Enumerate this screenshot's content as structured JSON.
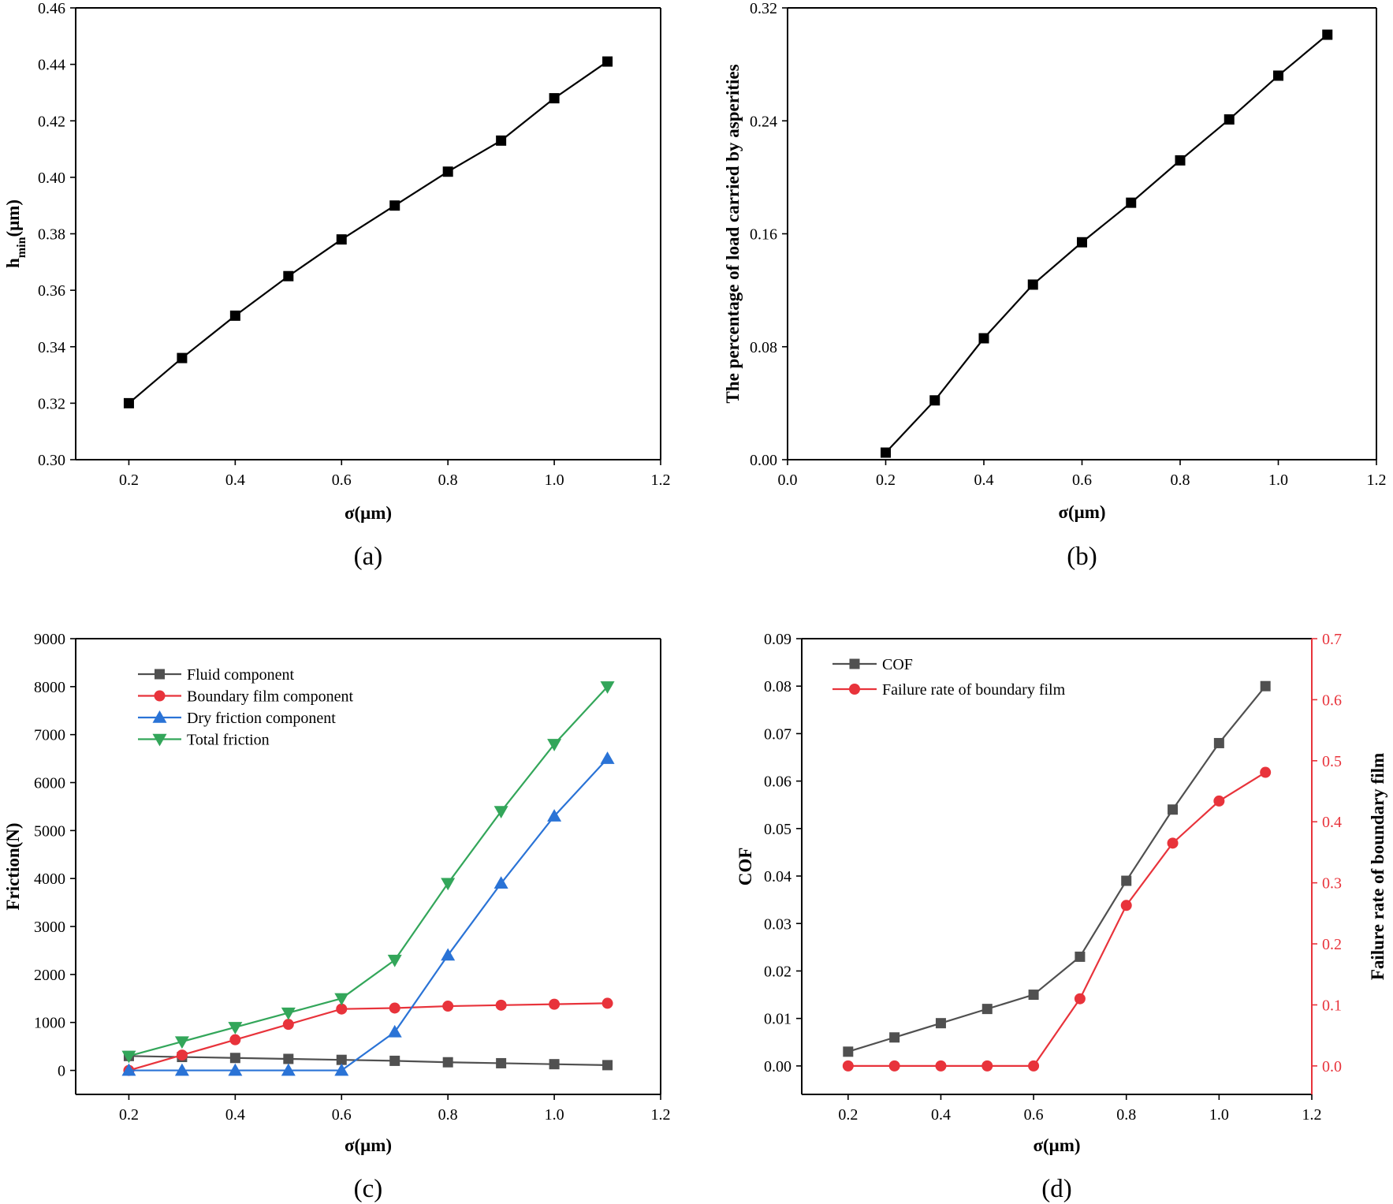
{
  "figure": {
    "panels": [
      "(a)",
      "(b)",
      "(c)",
      "(d)"
    ]
  },
  "chart_data": [
    {
      "id": "a",
      "type": "line",
      "panel_label": "(a)",
      "title": "",
      "xlabel": "σ(μm)",
      "ylabel_main": "h",
      "ylabel_sub": "min",
      "ylabel_tail": "(μm)",
      "xlim": [
        0.1,
        1.2
      ],
      "ylim": [
        0.3,
        0.46
      ],
      "xticks": [
        0.2,
        0.4,
        0.6,
        0.8,
        1.0,
        1.2
      ],
      "xtick_labels": [
        "0.2",
        "0.4",
        "0.6",
        "0.8",
        "1.0",
        "1.2"
      ],
      "yticks": [
        0.3,
        0.32,
        0.34,
        0.36,
        0.38,
        0.4,
        0.42,
        0.44,
        0.46
      ],
      "ytick_labels": [
        "0.30",
        "0.32",
        "0.34",
        "0.36",
        "0.38",
        "0.40",
        "0.42",
        "0.44",
        "0.46"
      ],
      "series": [
        {
          "name": "h_min",
          "color": "#000000",
          "marker": "square",
          "x": [
            0.2,
            0.3,
            0.4,
            0.5,
            0.6,
            0.7,
            0.8,
            0.9,
            1.0,
            1.1
          ],
          "values": [
            0.32,
            0.336,
            0.351,
            0.365,
            0.378,
            0.39,
            0.402,
            0.413,
            0.428,
            0.441
          ]
        }
      ]
    },
    {
      "id": "b",
      "type": "line",
      "panel_label": "(b)",
      "title": "",
      "xlabel": "σ(μm)",
      "ylabel": "The percentage of load carried by asperities",
      "xlim": [
        0.0,
        1.2
      ],
      "ylim": [
        0.0,
        0.32
      ],
      "xticks": [
        0.0,
        0.2,
        0.4,
        0.6,
        0.8,
        1.0,
        1.2
      ],
      "xtick_labels": [
        "0.0",
        "0.2",
        "0.4",
        "0.6",
        "0.8",
        "1.0",
        "1.2"
      ],
      "yticks": [
        0.0,
        0.08,
        0.16,
        0.24,
        0.32
      ],
      "ytick_labels": [
        "0.00",
        "0.08",
        "0.16",
        "0.24",
        "0.32"
      ],
      "series": [
        {
          "name": "load percentage",
          "color": "#000000",
          "marker": "square",
          "x": [
            0.2,
            0.3,
            0.4,
            0.5,
            0.6,
            0.7,
            0.8,
            0.9,
            1.0,
            1.1
          ],
          "values": [
            0.005,
            0.042,
            0.086,
            0.124,
            0.154,
            0.182,
            0.212,
            0.241,
            0.272,
            0.301
          ]
        }
      ]
    },
    {
      "id": "c",
      "type": "line",
      "panel_label": "(c)",
      "title": "",
      "xlabel": "σ(μm)",
      "ylabel": "Friction(N)",
      "xlim": [
        0.1,
        1.2
      ],
      "ylim": [
        -500,
        9000
      ],
      "xticks": [
        0.2,
        0.4,
        0.6,
        0.8,
        1.0,
        1.2
      ],
      "xtick_labels": [
        "0.2",
        "0.4",
        "0.6",
        "0.8",
        "1.0",
        "1.2"
      ],
      "yticks": [
        0,
        1000,
        2000,
        3000,
        4000,
        5000,
        6000,
        7000,
        8000,
        9000
      ],
      "ytick_labels": [
        "0",
        "1000",
        "2000",
        "3000",
        "4000",
        "5000",
        "6000",
        "7000",
        "8000",
        "9000"
      ],
      "legend_position": "top-left",
      "series": [
        {
          "name": "Fluid component",
          "color": "#505050",
          "marker": "square",
          "x": [
            0.2,
            0.3,
            0.4,
            0.5,
            0.6,
            0.7,
            0.8,
            0.9,
            1.0,
            1.1
          ],
          "values": [
            300,
            280,
            260,
            240,
            220,
            200,
            170,
            150,
            130,
            110
          ]
        },
        {
          "name": "Boundary film component",
          "color": "#e8333b",
          "marker": "circle",
          "x": [
            0.2,
            0.3,
            0.4,
            0.5,
            0.6,
            0.7,
            0.8,
            0.9,
            1.0,
            1.1
          ],
          "values": [
            0,
            320,
            640,
            960,
            1280,
            1300,
            1340,
            1360,
            1380,
            1400
          ]
        },
        {
          "name": "Dry friction component",
          "color": "#2a73d6",
          "marker": "triangle-up",
          "x": [
            0.2,
            0.3,
            0.4,
            0.5,
            0.6,
            0.7,
            0.8,
            0.9,
            1.0,
            1.1
          ],
          "values": [
            0,
            0,
            0,
            0,
            0,
            800,
            2400,
            3900,
            5300,
            6500
          ]
        },
        {
          "name": "Total friction",
          "color": "#33a65a",
          "marker": "triangle-down",
          "x": [
            0.2,
            0.3,
            0.4,
            0.5,
            0.6,
            0.7,
            0.8,
            0.9,
            1.0,
            1.1
          ],
          "values": [
            300,
            600,
            900,
            1200,
            1500,
            2300,
            3900,
            5400,
            6800,
            8000
          ]
        }
      ]
    },
    {
      "id": "d",
      "type": "line",
      "panel_label": "(d)",
      "title": "",
      "xlabel": "σ(μm)",
      "ylabel": "COF",
      "ylabel_right": "Failure rate of boundary film",
      "xlim": [
        0.1,
        1.2
      ],
      "ylim": [
        -0.006,
        0.09
      ],
      "ylim_right": [
        -0.04666,
        0.7
      ],
      "xticks": [
        0.2,
        0.4,
        0.6,
        0.8,
        1.0,
        1.2
      ],
      "xtick_labels": [
        "0.2",
        "0.4",
        "0.6",
        "0.8",
        "1.0",
        "1.2"
      ],
      "yticks": [
        0.0,
        0.01,
        0.02,
        0.03,
        0.04,
        0.05,
        0.06,
        0.07,
        0.08,
        0.09
      ],
      "ytick_labels": [
        "0.00",
        "0.01",
        "0.02",
        "0.03",
        "0.04",
        "0.05",
        "0.06",
        "0.07",
        "0.08",
        "0.09"
      ],
      "yticks_right": [
        0.0,
        0.1,
        0.2,
        0.3,
        0.4,
        0.5,
        0.6,
        0.7
      ],
      "ytick_labels_right": [
        "0.0",
        "0.1",
        "0.2",
        "0.3",
        "0.4",
        "0.5",
        "0.6",
        "0.7"
      ],
      "right_axis_color": "#e8333b",
      "legend_position": "top-left",
      "series": [
        {
          "name": "COF",
          "axis": "left",
          "color": "#505050",
          "marker": "square",
          "x": [
            0.2,
            0.3,
            0.4,
            0.5,
            0.6,
            0.7,
            0.8,
            0.9,
            1.0,
            1.1
          ],
          "values": [
            0.003,
            0.006,
            0.009,
            0.012,
            0.015,
            0.023,
            0.039,
            0.054,
            0.068,
            0.08
          ]
        },
        {
          "name": "Failure rate of boundary film",
          "axis": "right",
          "color": "#e8333b",
          "marker": "circle",
          "x": [
            0.2,
            0.3,
            0.4,
            0.5,
            0.6,
            0.7,
            0.8,
            0.9,
            1.0,
            1.1
          ],
          "values": [
            0.0,
            0.0,
            0.0,
            0.0,
            0.0,
            0.11,
            0.263,
            0.365,
            0.434,
            0.481
          ]
        }
      ]
    }
  ]
}
